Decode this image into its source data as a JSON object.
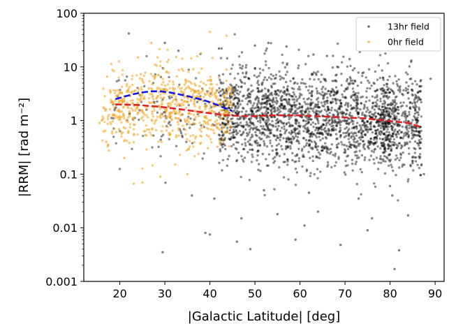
{
  "chart_data": {
    "type": "scatter",
    "xlabel": "|Galactic Latitude| [deg]",
    "ylabel": "|RRM| [rad m⁻²]",
    "xlim": [
      12,
      92
    ],
    "ylim": [
      0.001,
      100
    ],
    "yscale": "log",
    "x_ticks": [
      20,
      30,
      40,
      50,
      60,
      70,
      80,
      90
    ],
    "y_ticks": [
      0.001,
      0.01,
      0.1,
      1,
      10,
      100
    ],
    "y_tick_labels": [
      "0.001",
      "0.01",
      "0.1",
      "1",
      "10",
      "100"
    ],
    "grid": false,
    "legend_position": "top-right",
    "series": [
      {
        "name": "13hr field",
        "kind": "points",
        "color": "#000000",
        "note_visible": "dense cloud of ~2500 points spanning latitude 18-88, |RRM| mostly 0.05-20",
        "points": [
          [
            22,
            42
          ],
          [
            30,
            28
          ],
          [
            33,
            20
          ],
          [
            42,
            22
          ],
          [
            50,
            25
          ],
          [
            53,
            28
          ],
          [
            57,
            24
          ],
          [
            63,
            17
          ],
          [
            66,
            16
          ],
          [
            71,
            14
          ],
          [
            46,
            0.0055
          ],
          [
            49,
            0.004
          ],
          [
            29.5,
            0.0035
          ],
          [
            59,
            0.006
          ],
          [
            61,
            0.011
          ],
          [
            69,
            0.0048
          ],
          [
            75,
            0.009
          ],
          [
            81,
            0.0017
          ],
          [
            82,
            0.0038
          ],
          [
            39,
            0.008
          ],
          [
            40,
            0.0075
          ],
          [
            47,
            0.015
          ],
          [
            55,
            0.018
          ],
          [
            64,
            0.02
          ],
          [
            76,
            0.015
          ],
          [
            84,
            0.017
          ],
          [
            89,
            6
          ],
          [
            87.5,
            0.1
          ],
          [
            80,
            0.06
          ],
          [
            73,
            0.035
          ],
          [
            36,
            0.04
          ],
          [
            41,
            0.035
          ],
          [
            62,
            0.045
          ],
          [
            52,
            0.05
          ],
          [
            85,
            0.16
          ],
          [
            86,
            0.8
          ],
          [
            80.5,
            0.04
          ]
        ]
      },
      {
        "name": "0hr field",
        "kind": "points",
        "color": "#f5a623",
        "note_visible": "~700 points spanning latitude 15-45, |RRM| mostly 0.1-20",
        "points": [
          [
            40,
            45
          ],
          [
            27,
            28
          ],
          [
            24,
            15
          ],
          [
            38,
            18
          ],
          [
            16,
            1
          ],
          [
            15.5,
            0.9
          ],
          [
            17,
            0.4
          ],
          [
            25,
            0.07
          ],
          [
            29,
            0.09
          ],
          [
            35,
            0.1
          ],
          [
            21,
            0.2
          ]
        ]
      },
      {
        "name": "",
        "kind": "trend",
        "color": "#1515e0",
        "dash": "dashed",
        "x": [
          19,
          21,
          23,
          25,
          27,
          29,
          31,
          33,
          35,
          37,
          39,
          41,
          43,
          45
        ],
        "y": [
          2.5,
          2.8,
          3.1,
          3.35,
          3.5,
          3.5,
          3.35,
          3.1,
          2.85,
          2.6,
          2.35,
          2.05,
          1.75,
          1.5
        ]
      },
      {
        "name": "",
        "kind": "trend",
        "color": "#e02020",
        "dash": "dashed",
        "x": [
          19,
          24,
          29,
          34,
          39,
          44,
          49,
          54,
          59,
          64,
          69,
          74,
          79,
          84,
          87
        ],
        "y": [
          2.0,
          1.95,
          1.8,
          1.6,
          1.4,
          1.25,
          1.2,
          1.25,
          1.25,
          1.2,
          1.15,
          1.1,
          1.0,
          0.9,
          0.75
        ]
      }
    ]
  }
}
